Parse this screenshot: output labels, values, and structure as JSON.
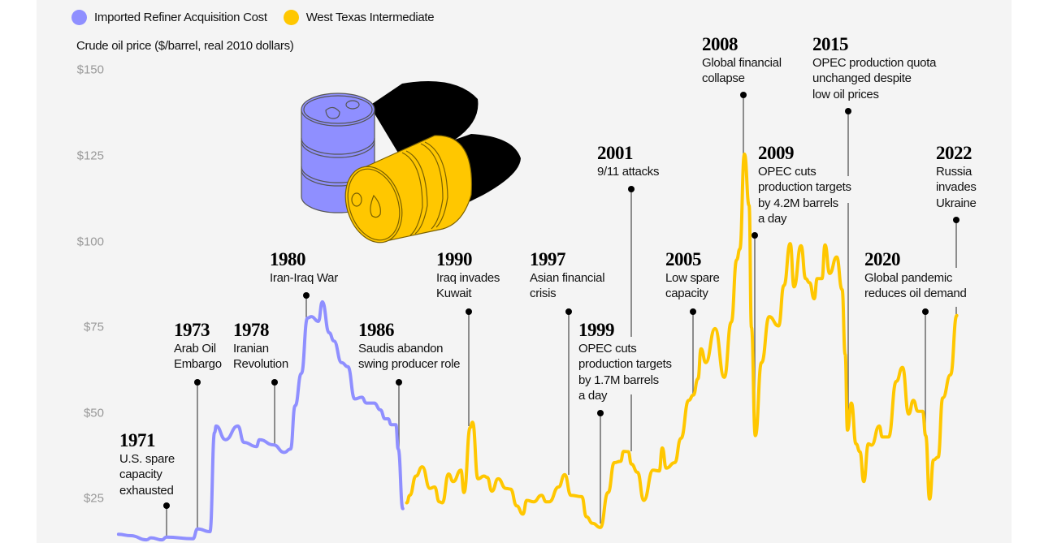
{
  "colors": {
    "background": "#f4f4f4",
    "irac": "#8f8fff",
    "wti": "#ffc700",
    "annotation": "#000000"
  },
  "legend": [
    {
      "label": "Imported Refiner Acquisition Cost",
      "color": "#8f8fff"
    },
    {
      "label": "West Texas Intermediate",
      "color": "#ffc700"
    }
  ],
  "chart_data": {
    "type": "line",
    "ylabel": "Crude oil price ($/barrel, real 2010 dollars)",
    "yticks": [
      150,
      125,
      100,
      75,
      50,
      25
    ],
    "ytick_labels": [
      "$150",
      "$125",
      "$100",
      "$75",
      "$50",
      "$25"
    ],
    "xlim": [
      1968,
      2022
    ],
    "grid": false,
    "legend_position": "top-left",
    "series": [
      {
        "name": "Imported Refiner Acquisition Cost",
        "color": "#8f8fff",
        "points": [
          [
            1967.9,
            14.6
          ],
          [
            1968.7,
            14.2
          ],
          [
            1969.7,
            13.0
          ],
          [
            1970.0,
            13.6
          ],
          [
            1970.7,
            13.0
          ],
          [
            1971.0,
            13.8
          ],
          [
            1972.7,
            13.3
          ],
          [
            1973.0,
            16.2
          ],
          [
            1973.8,
            15.4
          ],
          [
            1974.1,
            44.3
          ],
          [
            1974.2,
            46.2
          ],
          [
            1974.8,
            42.2
          ],
          [
            1975.6,
            46.2
          ],
          [
            1976.0,
            41.4
          ],
          [
            1976.8,
            40.2
          ],
          [
            1977.0,
            42.2
          ],
          [
            1977.9,
            40.7
          ],
          [
            1978.6,
            38.5
          ],
          [
            1979.0,
            39.5
          ],
          [
            1979.3,
            52.1
          ],
          [
            1979.7,
            61.5
          ],
          [
            1980.1,
            77.7
          ],
          [
            1980.35,
            78.1
          ],
          [
            1980.8,
            76.7
          ],
          [
            1981.05,
            82.4
          ],
          [
            1981.5,
            73.4
          ],
          [
            1981.8,
            71.0
          ],
          [
            1982.3,
            64.7
          ],
          [
            1982.7,
            63.5
          ],
          [
            1983.15,
            54.1
          ],
          [
            1983.6,
            54.6
          ],
          [
            1983.9,
            52.9
          ],
          [
            1984.4,
            52.9
          ],
          [
            1984.8,
            50.9
          ],
          [
            1985.1,
            48.3
          ],
          [
            1985.3,
            48.3
          ],
          [
            1985.5,
            46.6
          ],
          [
            1985.8,
            46.6
          ],
          [
            1985.95,
            39.5
          ],
          [
            1986.25,
            22.1
          ]
        ]
      },
      {
        "name": "West Texas Intermediate",
        "color": "#ffc700",
        "points": [
          [
            1986.5,
            23.8
          ],
          [
            1986.7,
            26.0
          ],
          [
            1987.1,
            31.6
          ],
          [
            1987.5,
            34.3
          ],
          [
            1988.0,
            28.0
          ],
          [
            1988.3,
            28.4
          ],
          [
            1988.6,
            24.1
          ],
          [
            1988.8,
            23.8
          ],
          [
            1989.2,
            32.2
          ],
          [
            1989.5,
            30.0
          ],
          [
            1990.0,
            33.3
          ],
          [
            1990.2,
            26.8
          ],
          [
            1990.6,
            45.8
          ],
          [
            1990.75,
            47.3
          ],
          [
            1991.1,
            30.8
          ],
          [
            1991.5,
            31.6
          ],
          [
            1991.7,
            31.2
          ],
          [
            1992.0,
            27.2
          ],
          [
            1992.4,
            30.8
          ],
          [
            1992.9,
            28.0
          ],
          [
            1993.2,
            27.8
          ],
          [
            1993.6,
            22.9
          ],
          [
            1994.0,
            20.5
          ],
          [
            1994.25,
            24.5
          ],
          [
            1994.7,
            24.1
          ],
          [
            1995.2,
            26.0
          ],
          [
            1995.5,
            24.1
          ],
          [
            1995.7,
            24.1
          ],
          [
            1996.3,
            28.4
          ],
          [
            1996.7,
            32.0
          ],
          [
            1997.1,
            26.0
          ],
          [
            1997.8,
            25.6
          ],
          [
            1998.1,
            19.7
          ],
          [
            1998.5,
            17.8
          ],
          [
            1999.0,
            16.6
          ],
          [
            1999.5,
            26.8
          ],
          [
            1999.9,
            35.5
          ],
          [
            2000.3,
            35.9
          ],
          [
            2000.5,
            38.8
          ],
          [
            2000.8,
            38.7
          ],
          [
            2001.0,
            35.1
          ],
          [
            2001.4,
            32.7
          ],
          [
            2001.8,
            24.5
          ],
          [
            2002.4,
            33.3
          ],
          [
            2002.8,
            33.1
          ],
          [
            2003.0,
            39.8
          ],
          [
            2003.25,
            33.9
          ],
          [
            2003.8,
            35.5
          ],
          [
            2004.2,
            42.6
          ],
          [
            2004.7,
            53.7
          ],
          [
            2005.0,
            55.2
          ],
          [
            2005.3,
            60.0
          ],
          [
            2005.5,
            68.7
          ],
          [
            2005.8,
            64.7
          ],
          [
            2006.4,
            74.6
          ],
          [
            2007.0,
            60.4
          ],
          [
            2007.45,
            76.5
          ],
          [
            2007.8,
            94.7
          ],
          [
            2008.0,
            97.8
          ],
          [
            2008.3,
            125.5
          ],
          [
            2008.6,
            110.5
          ],
          [
            2008.75,
            75.0
          ],
          [
            2009.0,
            43.4
          ],
          [
            2009.4,
            64.7
          ],
          [
            2009.9,
            78.1
          ],
          [
            2010.5,
            75.4
          ],
          [
            2010.85,
            87.2
          ],
          [
            2011.25,
            99.4
          ],
          [
            2011.5,
            86.8
          ],
          [
            2011.95,
            98.8
          ],
          [
            2012.25,
            89.2
          ],
          [
            2012.5,
            88.0
          ],
          [
            2012.8,
            83.3
          ],
          [
            2013.0,
            89.2
          ],
          [
            2013.3,
            89.2
          ],
          [
            2013.5,
            99.0
          ],
          [
            2013.8,
            90.7
          ],
          [
            2014.25,
            95.5
          ],
          [
            2014.6,
            86.0
          ],
          [
            2014.8,
            67.1
          ],
          [
            2014.95,
            45.0
          ],
          [
            2015.2,
            52.9
          ],
          [
            2015.5,
            41.0
          ],
          [
            2015.75,
            38.7
          ],
          [
            2016.0,
            30.0
          ],
          [
            2016.3,
            41.0
          ],
          [
            2016.5,
            40.6
          ],
          [
            2017.0,
            46.2
          ],
          [
            2017.2,
            43.0
          ],
          [
            2017.6,
            43.0
          ],
          [
            2018.1,
            59.2
          ],
          [
            2018.5,
            63.3
          ],
          [
            2018.9,
            49.7
          ],
          [
            2019.2,
            53.7
          ],
          [
            2019.5,
            50.5
          ],
          [
            2019.8,
            50.5
          ],
          [
            2020.0,
            43.4
          ],
          [
            2020.25,
            24.9
          ],
          [
            2020.5,
            36.3
          ],
          [
            2020.8,
            37.1
          ],
          [
            2021.1,
            54.4
          ],
          [
            2021.6,
            61.1
          ],
          [
            2022.0,
            78.4
          ]
        ]
      }
    ],
    "annotations": [
      {
        "year": "1971",
        "lines": [
          "U.S. spare",
          "capacity",
          "exhausted"
        ]
      },
      {
        "year": "1973",
        "lines": [
          "Arab Oil",
          "Embargo"
        ]
      },
      {
        "year": "1978",
        "lines": [
          "Iranian",
          "Revolution"
        ]
      },
      {
        "year": "1980",
        "lines": [
          "Iran-Iraq War"
        ]
      },
      {
        "year": "1986",
        "lines": [
          "Saudis abandon",
          "swing producer role"
        ]
      },
      {
        "year": "1990",
        "lines": [
          "Iraq invades",
          "Kuwait"
        ]
      },
      {
        "year": "1997",
        "lines": [
          "Asian financial",
          "crisis"
        ]
      },
      {
        "year": "1999",
        "lines": [
          "OPEC cuts",
          "production targets",
          "by 1.7M barrels",
          "a day"
        ]
      },
      {
        "year": "2001",
        "lines": [
          "9/11 attacks"
        ]
      },
      {
        "year": "2005",
        "lines": [
          "Low spare",
          "capacity"
        ]
      },
      {
        "year": "2008",
        "lines": [
          "Global financial",
          "collapse"
        ]
      },
      {
        "year": "2009",
        "lines": [
          "OPEC cuts",
          "production targets",
          "by 4.2M barrels",
          "a day"
        ]
      },
      {
        "year": "2015",
        "lines": [
          "OPEC production quota",
          "unchanged despite",
          "low oil prices"
        ]
      },
      {
        "year": "2020",
        "lines": [
          "Global pandemic",
          "reduces oil demand"
        ]
      },
      {
        "year": "2022",
        "lines": [
          "Russia",
          "invades",
          "Ukraine"
        ]
      }
    ]
  },
  "illustration": {
    "name": "oil-barrels",
    "colors": [
      "#8f8fff",
      "#ffc700",
      "#000000"
    ]
  }
}
